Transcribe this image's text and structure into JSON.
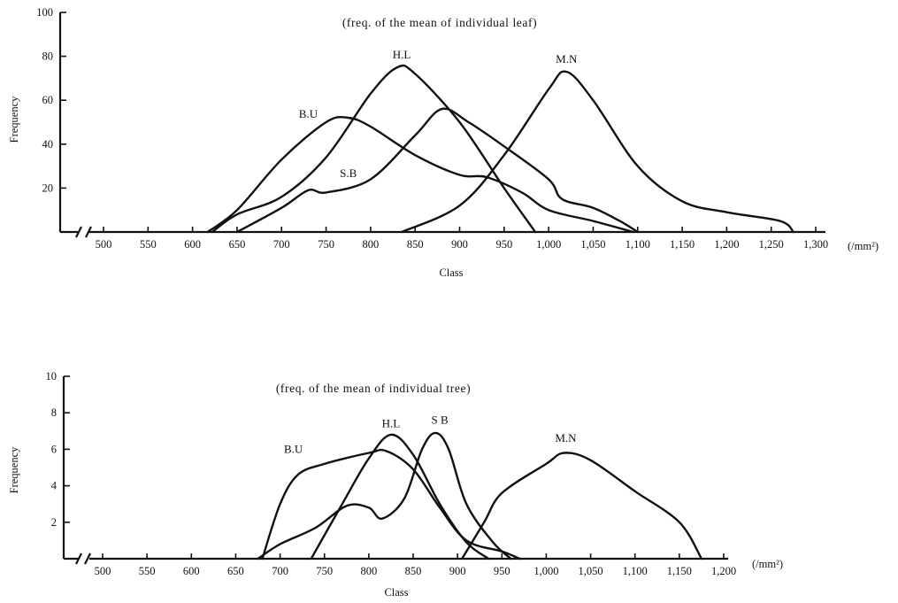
{
  "chart_data": [
    {
      "type": "line",
      "title": "(freq. of the mean of individual leaf)",
      "xlabel": "Class",
      "ylabel": "Frequency",
      "x_unit": "(/mm²)",
      "axis_break": true,
      "xlim": [
        500,
        1300
      ],
      "ylim": [
        0,
        100
      ],
      "x_ticks": [
        {
          "value": 500,
          "label": "500"
        },
        {
          "value": 550,
          "label": "550"
        },
        {
          "value": 600,
          "label": "600"
        },
        {
          "value": 650,
          "label": "650"
        },
        {
          "value": 700,
          "label": "700"
        },
        {
          "value": 750,
          "label": "750"
        },
        {
          "value": 800,
          "label": "800"
        },
        {
          "value": 850,
          "label": "850"
        },
        {
          "value": 900,
          "label": "900"
        },
        {
          "value": 950,
          "label": "950"
        },
        {
          "value": 1000,
          "label": "1,000"
        },
        {
          "value": 1050,
          "label": "1,050"
        },
        {
          "value": 1100,
          "label": "1,100"
        },
        {
          "value": 1150,
          "label": "1,150"
        },
        {
          "value": 1200,
          "label": "1,200"
        },
        {
          "value": 1250,
          "label": "1,250"
        },
        {
          "value": 1300,
          "label": "1,300"
        }
      ],
      "y_ticks": [
        {
          "value": 20,
          "label": "20"
        },
        {
          "value": 40,
          "label": "40"
        },
        {
          "value": 60,
          "label": "60"
        },
        {
          "value": 80,
          "label": "80"
        },
        {
          "value": 100,
          "label": "100"
        }
      ],
      "series": [
        {
          "name": "B.U",
          "label_at": [
            730,
            52
          ],
          "points": [
            [
              617,
              0
            ],
            [
              650,
              10
            ],
            [
              700,
              33
            ],
            [
              750,
              50
            ],
            [
              775,
              52
            ],
            [
              800,
              48
            ],
            [
              850,
              35
            ],
            [
              900,
              26
            ],
            [
              930,
              25
            ],
            [
              970,
              18
            ],
            [
              1000,
              10
            ],
            [
              1050,
              5
            ],
            [
              1095,
              0
            ]
          ]
        },
        {
          "name": "H.L",
          "label_at": [
            835,
            79
          ],
          "points": [
            [
              622,
              0
            ],
            [
              650,
              8
            ],
            [
              700,
              16
            ],
            [
              750,
              34
            ],
            [
              800,
              63
            ],
            [
              830,
              75
            ],
            [
              850,
              72
            ],
            [
              900,
              50
            ],
            [
              950,
              20
            ],
            [
              985,
              0
            ]
          ]
        },
        {
          "name": "S.B",
          "label_at": [
            775,
            25
          ],
          "points": [
            [
              650,
              0
            ],
            [
              700,
              11
            ],
            [
              730,
              19
            ],
            [
              750,
              18
            ],
            [
              800,
              24
            ],
            [
              850,
              44
            ],
            [
              880,
              56
            ],
            [
              910,
              50
            ],
            [
              950,
              39
            ],
            [
              1000,
              24
            ],
            [
              1015,
              15
            ],
            [
              1050,
              11
            ],
            [
              1080,
              5
            ],
            [
              1100,
              0
            ]
          ]
        },
        {
          "name": "M.N",
          "label_at": [
            1020,
            77
          ],
          "points": [
            [
              835,
              0
            ],
            [
              900,
              12
            ],
            [
              950,
              35
            ],
            [
              1000,
              65
            ],
            [
              1020,
              73
            ],
            [
              1050,
              60
            ],
            [
              1100,
              30
            ],
            [
              1150,
              14
            ],
            [
              1200,
              9
            ],
            [
              1260,
              5
            ],
            [
              1275,
              0
            ]
          ]
        }
      ]
    },
    {
      "type": "line",
      "title": "(freq. of the mean of individual tree)",
      "xlabel": "Class",
      "ylabel": "Frequency",
      "x_unit": "(/mm²)",
      "axis_break": true,
      "xlim": [
        500,
        1200
      ],
      "ylim": [
        0,
        10
      ],
      "x_ticks": [
        {
          "value": 500,
          "label": "500"
        },
        {
          "value": 550,
          "label": "550"
        },
        {
          "value": 600,
          "label": "600"
        },
        {
          "value": 650,
          "label": "650"
        },
        {
          "value": 700,
          "label": "700"
        },
        {
          "value": 750,
          "label": "750"
        },
        {
          "value": 800,
          "label": "800"
        },
        {
          "value": 850,
          "label": "850"
        },
        {
          "value": 900,
          "label": "900"
        },
        {
          "value": 950,
          "label": "950"
        },
        {
          "value": 1000,
          "label": "1,000"
        },
        {
          "value": 1050,
          "label": "1,050"
        },
        {
          "value": 1100,
          "label": "1,100"
        },
        {
          "value": 1150,
          "label": "1,150"
        },
        {
          "value": 1200,
          "label": "1,200"
        }
      ],
      "y_ticks": [
        {
          "value": 2,
          "label": "2"
        },
        {
          "value": 4,
          "label": "4"
        },
        {
          "value": 6,
          "label": "6"
        },
        {
          "value": 8,
          "label": "8"
        },
        {
          "value": 10,
          "label": "10"
        }
      ],
      "series": [
        {
          "name": "B.U",
          "label_at": [
            715,
            5.8
          ],
          "points": [
            [
              680,
              0
            ],
            [
              700,
              3
            ],
            [
              720,
              4.6
            ],
            [
              750,
              5.2
            ],
            [
              800,
              5.8
            ],
            [
              820,
              5.9
            ],
            [
              850,
              4.9
            ],
            [
              880,
              2.8
            ],
            [
              910,
              1
            ],
            [
              950,
              0.4
            ],
            [
              970,
              0
            ]
          ]
        },
        {
          "name": "H.L",
          "label_at": [
            825,
            7.2
          ],
          "points": [
            [
              735,
              0
            ],
            [
              770,
              3
            ],
            [
              800,
              5.5
            ],
            [
              825,
              6.8
            ],
            [
              850,
              5.7
            ],
            [
              880,
              3
            ],
            [
              910,
              0.9
            ],
            [
              935,
              0
            ]
          ]
        },
        {
          "name": "S B",
          "label_at": [
            880,
            7.4
          ],
          "points": [
            [
              675,
              0
            ],
            [
              700,
              0.8
            ],
            [
              740,
              1.7
            ],
            [
              775,
              2.9
            ],
            [
              800,
              2.8
            ],
            [
              815,
              2.2
            ],
            [
              840,
              3.3
            ],
            [
              860,
              6
            ],
            [
              875,
              6.9
            ],
            [
              890,
              6
            ],
            [
              910,
              3
            ],
            [
              940,
              0.9
            ],
            [
              960,
              0
            ]
          ]
        },
        {
          "name": "M.N",
          "label_at": [
            1022,
            6.4
          ],
          "points": [
            [
              905,
              0
            ],
            [
              930,
              2
            ],
            [
              950,
              3.6
            ],
            [
              1000,
              5.2
            ],
            [
              1020,
              5.8
            ],
            [
              1050,
              5.4
            ],
            [
              1100,
              3.7
            ],
            [
              1150,
              2
            ],
            [
              1175,
              0
            ]
          ]
        }
      ]
    }
  ]
}
